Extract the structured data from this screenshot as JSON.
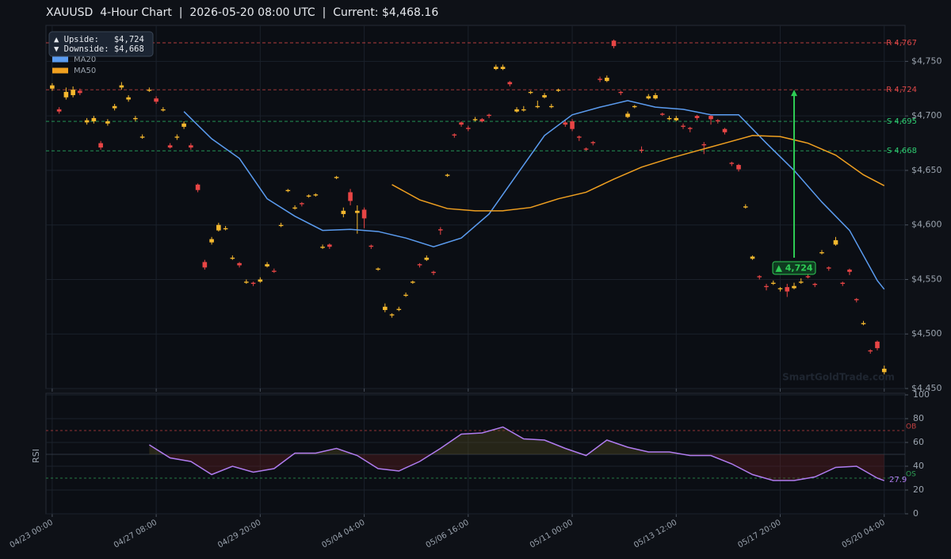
{
  "chart_data": {
    "type": "candlestick",
    "title": "XAUUSD  4-Hour Chart  |  2026-05-20 08:00 UTC  |  Current: $4,468.16",
    "watermark": "SmartGoldTrade.com",
    "grid": true,
    "up_color": "#f5b82e",
    "down_color": "#e84545",
    "ylim": [
      4450,
      4783
    ],
    "yticks": [
      {
        "value": 4450,
        "label": "$4,450"
      },
      {
        "value": 4500,
        "label": "$4,500"
      },
      {
        "value": 4550,
        "label": "$4,550"
      },
      {
        "value": 4600,
        "label": "$4,600"
      },
      {
        "value": 4650,
        "label": "$4,650"
      },
      {
        "value": 4700,
        "label": "$4,700"
      },
      {
        "value": 4750,
        "label": "$4,750"
      }
    ],
    "xlim": [
      -0.9,
      123
    ],
    "xticks": [
      {
        "value": 0,
        "label": "04/23 00:00"
      },
      {
        "value": 15,
        "label": "04/27 08:00"
      },
      {
        "value": 30,
        "label": "04/29 20:00"
      },
      {
        "value": 45,
        "label": "05/04 04:00"
      },
      {
        "value": 60,
        "label": "05/06 16:00"
      },
      {
        "value": 75,
        "label": "05/11 00:00"
      },
      {
        "value": 90,
        "label": "05/13 12:00"
      },
      {
        "value": 105,
        "label": "05/17 20:00"
      },
      {
        "value": 120,
        "label": "05/20 04:00"
      }
    ],
    "ohlc": [
      [
        4725,
        4730,
        4723,
        4728
      ],
      [
        4706,
        4708,
        4702,
        4704
      ],
      [
        4717,
        4726,
        4715,
        4722
      ],
      [
        4719,
        4727,
        4717,
        4724
      ],
      [
        4723,
        4725,
        4719,
        4721
      ],
      [
        4694,
        4698,
        4692,
        4696
      ],
      [
        4695,
        4700,
        4693,
        4698
      ],
      [
        4675,
        4677,
        4669,
        4671
      ],
      [
        4693,
        4697,
        4691,
        4695
      ],
      [
        4707,
        4711,
        4705,
        4709
      ],
      [
        4726,
        4731,
        4724,
        4728
      ],
      [
        4715,
        4719,
        4713,
        4717
      ],
      [
        4697,
        4700,
        4695,
        4698
      ],
      [
        4680,
        4683,
        4679,
        4681
      ],
      [
        4723,
        4726,
        4722,
        4724
      ],
      [
        4716,
        4718,
        4711,
        4713
      ],
      [
        4705,
        4708,
        4704,
        4706
      ],
      [
        4673,
        4675,
        4670,
        4671
      ],
      [
        4680,
        4683,
        4678,
        4681
      ],
      [
        4690,
        4695,
        4688,
        4693
      ],
      [
        4673,
        4675,
        4669,
        4671
      ],
      [
        4637,
        4638,
        4630,
        4632
      ],
      [
        4566,
        4568,
        4559,
        4561
      ],
      [
        4584,
        4589,
        4582,
        4587
      ],
      [
        4595,
        4602,
        4594,
        4600
      ],
      [
        4596,
        4599,
        4595,
        4597
      ],
      [
        4569,
        4572,
        4568,
        4570
      ],
      [
        4565,
        4566,
        4561,
        4563
      ],
      [
        4547,
        4550,
        4546,
        4548
      ],
      [
        4547,
        4548,
        4544,
        4546
      ],
      [
        4548,
        4552,
        4547,
        4550
      ],
      [
        4562,
        4566,
        4561,
        4564
      ],
      [
        4558,
        4560,
        4556,
        4557
      ],
      [
        4599,
        4602,
        4598,
        4600
      ],
      [
        4631,
        4633,
        4630,
        4632
      ],
      [
        4615,
        4618,
        4614,
        4616
      ],
      [
        4620,
        4621,
        4617,
        4619
      ],
      [
        4626,
        4628,
        4625,
        4627
      ],
      [
        4627,
        4629,
        4626,
        4628
      ],
      [
        4579,
        4582,
        4578,
        4580
      ],
      [
        4582,
        4583,
        4578,
        4580
      ],
      [
        4643,
        4645,
        4642,
        4644
      ],
      [
        4610,
        4616,
        4607,
        4613
      ],
      [
        4630,
        4633,
        4618,
        4622
      ],
      [
        4611,
        4618,
        4592,
        4613
      ],
      [
        4614,
        4616,
        4597,
        4606
      ],
      [
        4581,
        4582,
        4578,
        4580
      ],
      [
        4559,
        4561,
        4558,
        4560
      ],
      [
        4522,
        4528,
        4520,
        4525
      ],
      [
        4517,
        4519,
        4515,
        4518
      ],
      [
        4522,
        4525,
        4521,
        4523
      ],
      [
        4535,
        4538,
        4534,
        4536
      ],
      [
        4547,
        4549,
        4546,
        4548
      ],
      [
        4564,
        4565,
        4561,
        4563
      ],
      [
        4568,
        4572,
        4567,
        4570
      ],
      [
        4557,
        4558,
        4554,
        4556
      ],
      [
        4596,
        4598,
        4591,
        4595
      ],
      [
        4645,
        4647,
        4644,
        4646
      ],
      [
        4683,
        4684,
        4680,
        4682
      ],
      [
        4694,
        4695,
        4690,
        4692
      ],
      [
        4689,
        4691,
        4686,
        4688
      ],
      [
        4696,
        4699,
        4695,
        4697
      ],
      [
        4697,
        4698,
        4694,
        4695
      ],
      [
        4701,
        4702,
        4698,
        4700
      ],
      [
        4743,
        4747,
        4742,
        4745
      ],
      [
        4743,
        4747,
        4742,
        4745
      ],
      [
        4731,
        4732,
        4727,
        4729
      ],
      [
        4704,
        4708,
        4703,
        4706
      ],
      [
        4705,
        4709,
        4704,
        4706
      ],
      [
        4721,
        4723,
        4720,
        4722
      ],
      [
        4708,
        4714,
        4707,
        4709
      ],
      [
        4717,
        4721,
        4716,
        4719
      ],
      [
        4708,
        4711,
        4707,
        4709
      ],
      [
        4723,
        4725,
        4722,
        4724
      ],
      [
        4694,
        4696,
        4690,
        4692
      ],
      [
        4695,
        4697,
        4686,
        4688
      ],
      [
        4681,
        4682,
        4677,
        4680
      ],
      [
        4670,
        4671,
        4668,
        4669
      ],
      [
        4676,
        4677,
        4673,
        4675
      ],
      [
        4734,
        4736,
        4731,
        4733
      ],
      [
        4732,
        4737,
        4731,
        4735
      ],
      [
        4769,
        4770,
        4762,
        4764
      ],
      [
        4722,
        4723,
        4719,
        4721
      ],
      [
        4699,
        4704,
        4698,
        4702
      ],
      [
        4708,
        4710,
        4707,
        4709
      ],
      [
        4669,
        4672,
        4666,
        4668
      ],
      [
        4716,
        4720,
        4715,
        4718
      ],
      [
        4716,
        4721,
        4715,
        4719
      ],
      [
        4702,
        4703,
        4700,
        4701
      ],
      [
        4697,
        4700,
        4696,
        4698
      ],
      [
        4696,
        4700,
        4695,
        4698
      ],
      [
        4691,
        4693,
        4688,
        4690
      ],
      [
        4689,
        4690,
        4685,
        4688
      ],
      [
        4700,
        4701,
        4696,
        4698
      ],
      [
        4674,
        4676,
        4665,
        4673
      ],
      [
        4700,
        4701,
        4692,
        4697
      ],
      [
        4696,
        4697,
        4693,
        4695
      ],
      [
        4688,
        4689,
        4683,
        4685
      ],
      [
        4657,
        4658,
        4654,
        4656
      ],
      [
        4655,
        4656,
        4649,
        4651
      ],
      [
        4616,
        4619,
        4615,
        4617
      ],
      [
        4569,
        4572,
        4568,
        4571
      ],
      [
        4553,
        4554,
        4550,
        4552
      ],
      [
        4544,
        4546,
        4540,
        4543
      ],
      [
        4546,
        4549,
        4545,
        4547
      ],
      [
        4541,
        4543,
        4539,
        4542
      ],
      [
        4543,
        4546,
        4534,
        4539
      ],
      [
        4542,
        4547,
        4541,
        4544
      ],
      [
        4547,
        4551,
        4546,
        4548
      ],
      [
        4553,
        4555,
        4551,
        4552
      ],
      [
        4546,
        4547,
        4543,
        4545
      ],
      [
        4574,
        4577,
        4573,
        4575
      ],
      [
        4561,
        4562,
        4558,
        4560
      ],
      [
        4582,
        4589,
        4581,
        4586
      ],
      [
        4547,
        4548,
        4544,
        4546
      ],
      [
        4559,
        4560,
        4554,
        4557
      ],
      [
        4532,
        4533,
        4529,
        4531
      ],
      [
        4509,
        4512,
        4508,
        4510
      ],
      [
        4485,
        4486,
        4482,
        4484
      ],
      [
        4493,
        4494,
        4485,
        4487
      ],
      [
        4465,
        4471,
        4463,
        4468.16
      ]
    ],
    "series": [
      {
        "name": "MA20",
        "color": "#5b9cf0",
        "x": [
          19,
          23,
          27,
          31,
          35,
          39,
          43,
          47,
          51,
          55,
          59,
          63,
          67,
          71,
          75,
          79,
          83,
          87,
          91,
          95,
          99,
          103,
          107,
          111,
          115,
          119,
          120
        ],
        "values": [
          4704,
          4679,
          4661,
          4624,
          4608,
          4595,
          4596,
          4594,
          4588,
          4580,
          4588,
          4610,
          4646,
          4682,
          4701,
          4708,
          4714,
          4708,
          4706,
          4701,
          4701,
          4675,
          4650,
          4621,
          4595,
          4549,
          4541
        ]
      },
      {
        "name": "MA50",
        "color": "#f0a020",
        "x": [
          49,
          53,
          57,
          61,
          65,
          69,
          73,
          77,
          81,
          85,
          89,
          93,
          97,
          101,
          105,
          109,
          113,
          117,
          120
        ],
        "values": [
          4637,
          4623,
          4615,
          4613,
          4613,
          4616,
          4624,
          4630,
          4642,
          4653,
          4661,
          4668,
          4675,
          4682,
          4681,
          4675,
          4664,
          4646,
          4636
        ]
      }
    ],
    "levels": [
      {
        "label": "R 4,767",
        "value": 4767,
        "color": "#e04848"
      },
      {
        "label": "R 4,724",
        "value": 4724,
        "color": "#e04848"
      },
      {
        "label": "S 4,695",
        "value": 4695,
        "color": "#2ecc71"
      },
      {
        "label": "S 4,668",
        "value": 4668,
        "color": "#2ecc71"
      }
    ],
    "annotation": {
      "text": "▲ 4,724",
      "x": 107,
      "from": 4570,
      "to": 4724,
      "color": "#2ecc55"
    },
    "info_box": [
      "▲ Upside:   $4,724",
      "▼ Downside: $4,668"
    ],
    "rsi": {
      "ylabel": "RSI",
      "color": "#b07cf0",
      "ylim": [
        0,
        100
      ],
      "yticks": [
        0,
        20,
        40,
        60,
        80,
        100
      ],
      "mid": 50,
      "overbought": {
        "value": 70,
        "label": "OB"
      },
      "oversold": {
        "value": 30,
        "label": "OS"
      },
      "x": [
        14,
        17,
        20,
        23,
        26,
        29,
        32,
        35,
        38,
        41,
        44,
        47,
        50,
        53,
        56,
        59,
        62,
        65,
        68,
        71,
        74,
        77,
        80,
        83,
        86,
        89,
        92,
        95,
        98,
        101,
        104,
        107,
        110,
        113,
        116,
        119,
        120
      ],
      "values": [
        58,
        47,
        44,
        33,
        40,
        35,
        38,
        51,
        51,
        55,
        49,
        38,
        36,
        44,
        55,
        67,
        68,
        73,
        63,
        62,
        55,
        49,
        62,
        56,
        52,
        52,
        49,
        49,
        42,
        33,
        28,
        28,
        31,
        39,
        40,
        30,
        27.9
      ],
      "last_value_label": "27.9"
    }
  }
}
